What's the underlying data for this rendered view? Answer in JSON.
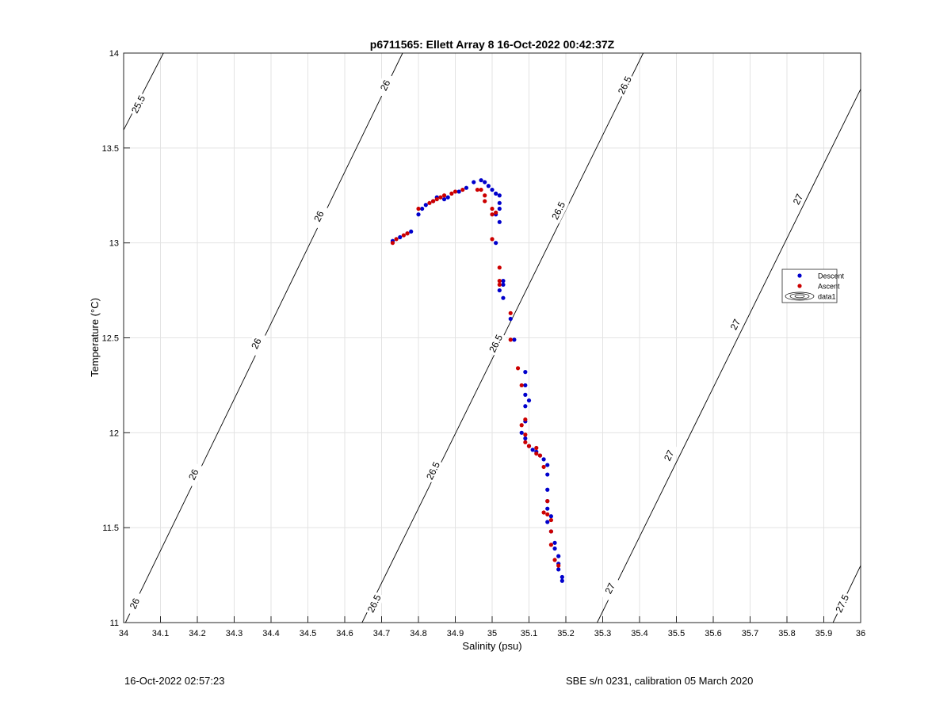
{
  "chart_data": {
    "type": "scatter",
    "title": "p6711565: Ellett Array 8 16-Oct-2022 00:42:37Z",
    "xlabel": "Salinity (psu)",
    "ylabel": "Temperature (°C)",
    "xlim": [
      34,
      36
    ],
    "ylim": [
      11,
      14
    ],
    "xticks": [
      "34",
      "34.1",
      "34.2",
      "34.3",
      "34.4",
      "34.5",
      "34.6",
      "34.7",
      "34.8",
      "34.9",
      "35",
      "35.1",
      "35.2",
      "35.3",
      "35.4",
      "35.5",
      "35.6",
      "35.7",
      "35.8",
      "35.9",
      "36"
    ],
    "yticks": [
      "11",
      "11.5",
      "12",
      "12.5",
      "13",
      "13.5",
      "14"
    ],
    "grid": true,
    "legend_position": "right",
    "series": [
      {
        "name": "Descent",
        "color": "#0000cc",
        "points": [
          [
            34.73,
            13.01
          ],
          [
            34.75,
            13.03
          ],
          [
            34.77,
            13.05
          ],
          [
            34.78,
            13.06
          ],
          [
            34.8,
            13.15
          ],
          [
            34.81,
            13.18
          ],
          [
            34.82,
            13.2
          ],
          [
            34.84,
            13.22
          ],
          [
            34.85,
            13.24
          ],
          [
            34.87,
            13.23
          ],
          [
            34.88,
            13.24
          ],
          [
            34.91,
            13.27
          ],
          [
            34.93,
            13.29
          ],
          [
            34.95,
            13.32
          ],
          [
            34.97,
            13.33
          ],
          [
            34.98,
            13.32
          ],
          [
            34.99,
            13.3
          ],
          [
            35.0,
            13.28
          ],
          [
            35.01,
            13.26
          ],
          [
            35.02,
            13.25
          ],
          [
            35.02,
            13.21
          ],
          [
            35.02,
            13.18
          ],
          [
            35.01,
            13.15
          ],
          [
            35.02,
            13.11
          ],
          [
            35.01,
            13.0
          ],
          [
            35.03,
            12.8
          ],
          [
            35.03,
            12.78
          ],
          [
            35.02,
            12.75
          ],
          [
            35.03,
            12.71
          ],
          [
            35.05,
            12.6
          ],
          [
            35.06,
            12.49
          ],
          [
            35.09,
            12.32
          ],
          [
            35.09,
            12.25
          ],
          [
            35.09,
            12.2
          ],
          [
            35.1,
            12.17
          ],
          [
            35.09,
            12.14
          ],
          [
            35.09,
            12.06
          ],
          [
            35.08,
            12.0
          ],
          [
            35.09,
            11.97
          ],
          [
            35.1,
            11.93
          ],
          [
            35.11,
            11.91
          ],
          [
            35.12,
            11.9
          ],
          [
            35.13,
            11.88
          ],
          [
            35.14,
            11.86
          ],
          [
            35.15,
            11.83
          ],
          [
            35.15,
            11.78
          ],
          [
            35.15,
            11.7
          ],
          [
            35.15,
            11.64
          ],
          [
            35.15,
            11.6
          ],
          [
            35.16,
            11.56
          ],
          [
            35.15,
            11.53
          ],
          [
            35.16,
            11.48
          ],
          [
            35.17,
            11.42
          ],
          [
            35.17,
            11.39
          ],
          [
            35.18,
            11.35
          ],
          [
            35.18,
            11.31
          ],
          [
            35.18,
            11.28
          ],
          [
            35.19,
            11.24
          ],
          [
            35.19,
            11.22
          ]
        ]
      },
      {
        "name": "Ascent",
        "color": "#cc0000",
        "points": [
          [
            34.73,
            13.0
          ],
          [
            34.74,
            13.02
          ],
          [
            34.76,
            13.04
          ],
          [
            34.77,
            13.05
          ],
          [
            34.8,
            13.18
          ],
          [
            34.83,
            13.21
          ],
          [
            34.84,
            13.22
          ],
          [
            34.85,
            13.23
          ],
          [
            34.86,
            13.24
          ],
          [
            34.87,
            13.25
          ],
          [
            34.89,
            13.26
          ],
          [
            34.9,
            13.27
          ],
          [
            34.92,
            13.28
          ],
          [
            34.96,
            13.28
          ],
          [
            34.97,
            13.28
          ],
          [
            34.98,
            13.25
          ],
          [
            34.98,
            13.22
          ],
          [
            35.0,
            13.18
          ],
          [
            35.0,
            13.15
          ],
          [
            35.01,
            13.16
          ],
          [
            35.0,
            13.02
          ],
          [
            35.02,
            12.87
          ],
          [
            35.02,
            12.8
          ],
          [
            35.02,
            12.78
          ],
          [
            35.05,
            12.63
          ],
          [
            35.05,
            12.49
          ],
          [
            35.07,
            12.34
          ],
          [
            35.08,
            12.25
          ],
          [
            35.09,
            12.07
          ],
          [
            35.08,
            12.04
          ],
          [
            35.09,
            11.99
          ],
          [
            35.09,
            11.95
          ],
          [
            35.1,
            11.93
          ],
          [
            35.12,
            11.92
          ],
          [
            35.12,
            11.89
          ],
          [
            35.13,
            11.88
          ],
          [
            35.14,
            11.82
          ],
          [
            35.15,
            11.64
          ],
          [
            35.14,
            11.58
          ],
          [
            35.15,
            11.57
          ],
          [
            35.16,
            11.54
          ],
          [
            35.16,
            11.48
          ],
          [
            35.16,
            11.41
          ],
          [
            35.17,
            11.33
          ],
          [
            35.18,
            11.3
          ]
        ]
      }
    ],
    "contours": [
      {
        "label": "25.5",
        "x0": 34.0,
        "y0": 13.595,
        "x1": 34.108,
        "y1": 14.0,
        "labels": [
          {
            "text": "25.5",
            "x": 34.04,
            "y": 13.73
          }
        ]
      },
      {
        "label": "26",
        "x0": 34.005,
        "y0": 11.0,
        "x1": 34.757,
        "y1": 14.0,
        "labels": [
          {
            "text": "26",
            "x": 34.03,
            "y": 11.1
          },
          {
            "text": "26",
            "x": 34.19,
            "y": 11.78
          },
          {
            "text": "26",
            "x": 34.36,
            "y": 12.47
          },
          {
            "text": "26",
            "x": 34.53,
            "y": 13.14
          },
          {
            "text": "26",
            "x": 34.71,
            "y": 13.83
          }
        ]
      },
      {
        "label": "26.5",
        "x0": 34.647,
        "y0": 11.0,
        "x1": 35.41,
        "y1": 14.0,
        "labels": [
          {
            "text": "26.5",
            "x": 34.68,
            "y": 11.1
          },
          {
            "text": "26.5",
            "x": 34.84,
            "y": 11.8
          },
          {
            "text": "26.5",
            "x": 35.01,
            "y": 12.47
          },
          {
            "text": "26.5",
            "x": 35.18,
            "y": 13.17
          },
          {
            "text": "26.5",
            "x": 35.36,
            "y": 13.83
          }
        ]
      },
      {
        "label": "27",
        "x0": 35.285,
        "y0": 11.0,
        "x1": 36.0,
        "y1": 13.81,
        "labels": [
          {
            "text": "27",
            "x": 35.32,
            "y": 11.18
          },
          {
            "text": "27",
            "x": 35.48,
            "y": 11.88
          },
          {
            "text": "27",
            "x": 35.66,
            "y": 12.57
          },
          {
            "text": "27",
            "x": 35.83,
            "y": 13.23
          }
        ]
      },
      {
        "label": "27.5",
        "x0": 35.925,
        "y0": 11.0,
        "x1": 36.0,
        "y1": 11.3,
        "labels": [
          {
            "text": "27.5",
            "x": 35.95,
            "y": 11.1
          }
        ]
      }
    ],
    "legend": [
      "Descent",
      "Ascent",
      "data1"
    ]
  },
  "footer": {
    "left": "16-Oct-2022 02:57:23",
    "right": "SBE s/n 0231, calibration 05 March 2020"
  }
}
